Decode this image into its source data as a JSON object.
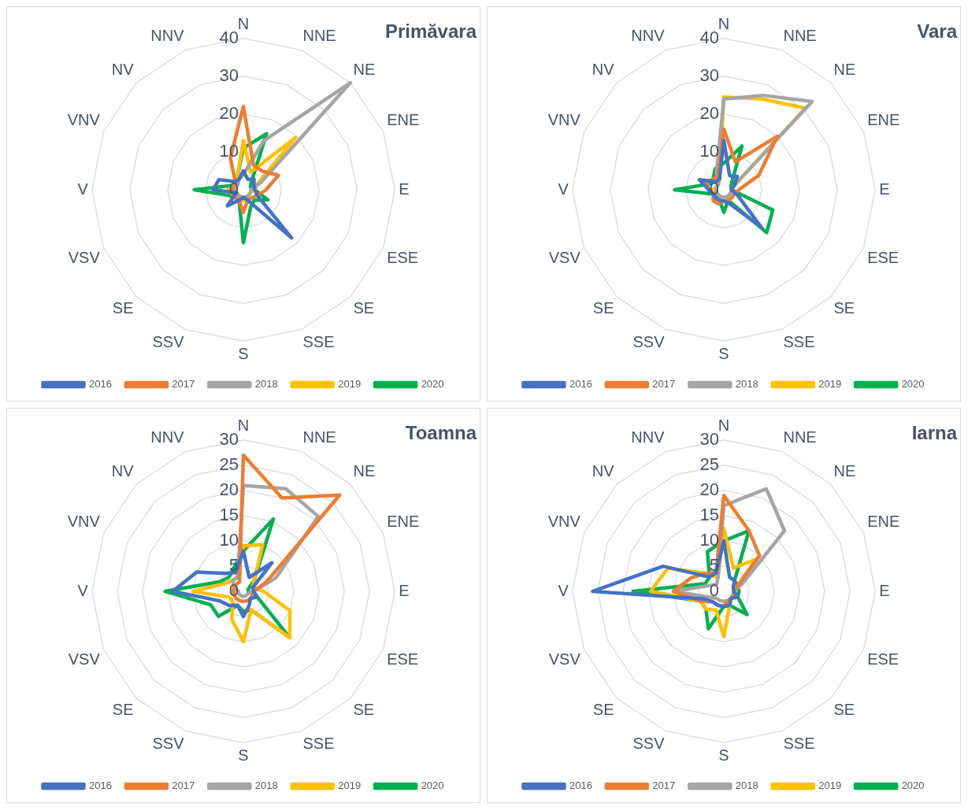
{
  "chart_data": [
    {
      "type": "radar",
      "title": "Primăvara",
      "categories": [
        "N",
        "NNE",
        "NE",
        "ENE",
        "E",
        "ESE",
        "SE",
        "SSE",
        "S",
        "SSV",
        "SE",
        "VSV",
        "V",
        "VNV",
        "NV",
        "NNV"
      ],
      "ylim": [
        0,
        40
      ],
      "yticks": [
        0,
        10,
        20,
        30,
        40
      ],
      "grid": true,
      "legend": "bottom",
      "series": [
        {
          "name": "2016",
          "color": "#4472c4",
          "values": [
            5,
            3,
            4,
            3,
            3,
            4,
            18,
            3,
            2,
            3,
            6,
            2,
            8,
            7,
            3,
            3
          ]
        },
        {
          "name": "2017",
          "color": "#ed7d31",
          "values": [
            22,
            7,
            7,
            10,
            6,
            4,
            3,
            3,
            6,
            3,
            3,
            2,
            3,
            3,
            3,
            9
          ]
        },
        {
          "name": "2018",
          "color": "#a5a5a5",
          "values": [
            4,
            14,
            40,
            5,
            2,
            2,
            2,
            2,
            2,
            2,
            2,
            2,
            3,
            2,
            2,
            3
          ]
        },
        {
          "name": "2019",
          "color": "#ffc000",
          "values": [
            13,
            5,
            19.5,
            4,
            3,
            2,
            2,
            2,
            3,
            2,
            2,
            3,
            4,
            3,
            3,
            4
          ]
        },
        {
          "name": "2020",
          "color": "#00b050",
          "values": [
            11,
            16,
            3,
            2,
            3,
            7,
            4,
            5,
            14,
            3,
            3,
            4,
            13,
            3,
            3,
            4
          ]
        }
      ]
    },
    {
      "type": "radar",
      "title": "Vara",
      "categories": [
        "N",
        "NNE",
        "NE",
        "ENE",
        "E",
        "ESE",
        "SE",
        "SSE",
        "S",
        "SSV",
        "SE",
        "VSV",
        "V",
        "VNV",
        "NV",
        "NNV"
      ],
      "ylim": [
        0,
        40
      ],
      "yticks": [
        0,
        10,
        20,
        30,
        40
      ],
      "grid": true,
      "legend": "bottom",
      "series": [
        {
          "name": "2016",
          "color": "#4472c4",
          "values": [
            13,
            4,
            5,
            3,
            2,
            4,
            14,
            4,
            3,
            3,
            3,
            3,
            4,
            7,
            3,
            3
          ]
        },
        {
          "name": "2017",
          "color": "#ed7d31",
          "values": [
            16,
            8,
            20,
            10,
            4,
            3,
            3,
            3,
            3,
            4,
            4,
            3,
            4,
            5,
            4,
            4
          ]
        },
        {
          "name": "2018",
          "color": "#a5a5a5",
          "values": [
            24,
            27,
            33,
            3,
            2,
            2,
            2,
            2,
            2,
            2,
            2,
            2,
            2,
            2,
            2,
            5
          ]
        },
        {
          "name": "2019",
          "color": "#ffc000",
          "values": [
            24.5,
            26,
            30.5,
            3,
            2,
            2,
            2,
            2,
            2,
            2,
            2,
            2,
            3,
            2,
            2,
            3
          ]
        },
        {
          "name": "2020",
          "color": "#00b050",
          "values": [
            7,
            12.5,
            3,
            2,
            2,
            14,
            16,
            3,
            6,
            3,
            3,
            3,
            13,
            4,
            4,
            6
          ]
        }
      ]
    },
    {
      "type": "radar",
      "title": "Toamna",
      "categories": [
        "N",
        "NNE",
        "NE",
        "ENE",
        "E",
        "ESE",
        "SE",
        "SSE",
        "S",
        "SSV",
        "SE",
        "VSV",
        "V",
        "VNV",
        "NV",
        "NNV"
      ],
      "ylim": [
        0,
        30
      ],
      "yticks": [
        0,
        5,
        10,
        15,
        20,
        25,
        30
      ],
      "grid": true,
      "legend": "bottom",
      "series": [
        {
          "name": "2016",
          "color": "#4472c4",
          "values": [
            8,
            3,
            8,
            2,
            2,
            3,
            2,
            3,
            5,
            3,
            4,
            5,
            14,
            10,
            5,
            4
          ]
        },
        {
          "name": "2017",
          "color": "#ed7d31",
          "values": [
            27,
            20,
            27,
            5,
            2,
            2,
            2,
            2,
            2,
            2,
            2,
            2,
            2,
            2,
            2,
            2
          ]
        },
        {
          "name": "2018",
          "color": "#a5a5a5",
          "values": [
            21,
            22,
            21,
            7,
            2,
            1,
            1,
            1,
            1,
            1,
            1,
            1,
            1,
            2,
            3,
            3
          ]
        },
        {
          "name": "2019",
          "color": "#ffc000",
          "values": [
            9,
            10,
            3,
            2,
            4,
            10,
            13,
            4,
            10,
            6,
            3,
            3,
            10,
            4,
            3,
            3
          ]
        },
        {
          "name": "2020",
          "color": "#00b050",
          "values": [
            8,
            15.5,
            3,
            1,
            1,
            3,
            13,
            4,
            4,
            3,
            7,
            7,
            15.5,
            5,
            4,
            5
          ]
        }
      ]
    },
    {
      "type": "radar",
      "title": "Iarna",
      "categories": [
        "N",
        "NNE",
        "NE",
        "ENE",
        "E",
        "ESE",
        "SE",
        "SSE",
        "S",
        "SSV",
        "SE",
        "VSV",
        "V",
        "VNV",
        "NV",
        "NNV"
      ],
      "ylim": [
        0,
        30
      ],
      "yticks": [
        0,
        5,
        10,
        15,
        20,
        25,
        30
      ],
      "grid": true,
      "legend": "bottom",
      "series": [
        {
          "name": "2016",
          "color": "#4472c4",
          "values": [
            10,
            3,
            3,
            2,
            2,
            3,
            2,
            3,
            3,
            3,
            3,
            4,
            26,
            13,
            4,
            4
          ]
        },
        {
          "name": "2017",
          "color": "#ed7d31",
          "values": [
            19,
            13,
            10,
            3,
            2,
            2,
            2,
            2,
            3,
            3,
            3,
            5,
            10,
            7,
            5,
            4
          ]
        },
        {
          "name": "2018",
          "color": "#a5a5a5",
          "values": [
            17,
            22,
            17,
            4,
            2,
            2,
            2,
            2,
            2,
            2,
            2,
            3,
            10,
            3,
            2,
            3
          ]
        },
        {
          "name": "2019",
          "color": "#ffc000",
          "values": [
            12.5,
            5,
            9,
            3,
            2,
            2,
            2,
            3,
            9,
            4,
            5,
            5,
            14.5,
            12,
            5,
            3
          ]
        },
        {
          "name": "2020",
          "color": "#00b050",
          "values": [
            10,
            13,
            3,
            3,
            3,
            3,
            6.5,
            3,
            3,
            8,
            5,
            5,
            18,
            4,
            4,
            8.5
          ]
        }
      ]
    }
  ]
}
